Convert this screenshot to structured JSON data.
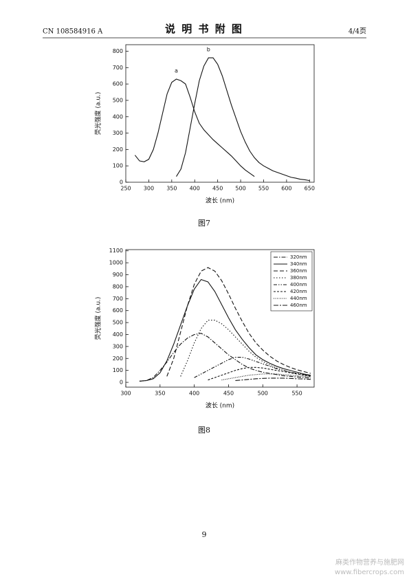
{
  "header": {
    "left": "CN 108584916 A",
    "title": "说 明 书 附 图",
    "right": "4/4页"
  },
  "chart_data": [
    {
      "type": "line",
      "xlabel": "波长 (nm)",
      "ylabel": "荧光强度 (a.u.)",
      "x": [
        270,
        280,
        290,
        300,
        310,
        320,
        330,
        340,
        350,
        360,
        370,
        380,
        390,
        400,
        410,
        420,
        430,
        440,
        450,
        460,
        470,
        480,
        490,
        500,
        510,
        520,
        530,
        540,
        550,
        560,
        570,
        580,
        590,
        600,
        610,
        620,
        630,
        640,
        650
      ],
      "series": [
        {
          "name": "a",
          "color": "#111111",
          "values": [
            165,
            130,
            125,
            140,
            200,
            300,
            420,
            540,
            610,
            630,
            620,
            600,
            520,
            430,
            360,
            320,
            290,
            260,
            235,
            210,
            185,
            160,
            130,
            100,
            75,
            55,
            35,
            null,
            null,
            null,
            null,
            null,
            null,
            null,
            null,
            null,
            null,
            null,
            null
          ]
        },
        {
          "name": "b",
          "color": "#111111",
          "values": [
            null,
            null,
            null,
            null,
            null,
            null,
            null,
            null,
            null,
            35,
            80,
            180,
            330,
            480,
            620,
            710,
            760,
            760,
            720,
            650,
            560,
            470,
            390,
            310,
            245,
            190,
            150,
            120,
            100,
            85,
            70,
            60,
            50,
            40,
            30,
            25,
            18,
            15,
            10
          ]
        }
      ],
      "xlim": [
        250,
        660
      ],
      "ylim": [
        0,
        840
      ],
      "xticks": [
        250,
        300,
        350,
        400,
        450,
        500,
        550,
        600,
        650
      ],
      "yticks": [
        0,
        100,
        200,
        300,
        400,
        500,
        600,
        700,
        800
      ]
    },
    {
      "type": "line",
      "xlabel": "波长 (nm)",
      "ylabel": "荧光强度 (a.u.)",
      "legend": "upper right",
      "x": [
        320,
        330,
        340,
        350,
        360,
        370,
        380,
        390,
        400,
        410,
        420,
        430,
        440,
        450,
        460,
        470,
        480,
        490,
        500,
        510,
        520,
        530,
        540,
        550,
        560,
        570
      ],
      "series": [
        {
          "name": "320nm",
          "color": "#111111",
          "dash": "6 2 1.5 2",
          "values": [
            10,
            15,
            40,
            100,
            170,
            250,
            320,
            370,
            400,
            410,
            380,
            330,
            280,
            230,
            190,
            150,
            120,
            100,
            85,
            75,
            65,
            55,
            50,
            45,
            40,
            35
          ]
        },
        {
          "name": "340nm",
          "color": "#111111",
          "dash": "none",
          "values": [
            10,
            15,
            30,
            80,
            180,
            320,
            480,
            640,
            780,
            860,
            840,
            760,
            650,
            540,
            440,
            360,
            290,
            230,
            190,
            160,
            135,
            115,
            100,
            85,
            70,
            60
          ]
        },
        {
          "name": "360nm",
          "color": "#111111",
          "dash": "6 3",
          "values": [
            null,
            null,
            null,
            null,
            50,
            200,
            420,
            640,
            820,
            930,
            960,
            930,
            850,
            740,
            620,
            510,
            410,
            330,
            270,
            220,
            180,
            150,
            125,
            105,
            90,
            75
          ]
        },
        {
          "name": "380nm",
          "color": "#111111",
          "dash": "1.5 2.5",
          "values": [
            null,
            null,
            null,
            null,
            null,
            null,
            50,
            180,
            330,
            450,
            520,
            520,
            490,
            440,
            380,
            320,
            260,
            210,
            175,
            145,
            120,
            100,
            85,
            75,
            65,
            55
          ]
        },
        {
          "name": "400nm",
          "color": "#111111",
          "dash": "5 2 1.5 2 1.5 2",
          "values": [
            null,
            null,
            null,
            null,
            null,
            null,
            null,
            null,
            40,
            70,
            100,
            130,
            160,
            190,
            210,
            210,
            195,
            175,
            155,
            135,
            115,
            100,
            85,
            75,
            65,
            55
          ]
        },
        {
          "name": "420nm",
          "color": "#111111",
          "dash": "3 2",
          "values": [
            null,
            null,
            null,
            null,
            null,
            null,
            null,
            null,
            null,
            null,
            20,
            40,
            60,
            80,
            100,
            115,
            125,
            125,
            120,
            110,
            100,
            90,
            80,
            70,
            60,
            50
          ]
        },
        {
          "name": "440nm",
          "color": "#111111",
          "dash": "1 1.5",
          "values": [
            null,
            null,
            null,
            null,
            null,
            null,
            null,
            null,
            null,
            null,
            null,
            null,
            20,
            30,
            40,
            50,
            60,
            65,
            70,
            70,
            70,
            65,
            60,
            55,
            50,
            45
          ]
        },
        {
          "name": "460nm",
          "color": "#111111",
          "dash": "7 2 2 2",
          "values": [
            null,
            null,
            null,
            null,
            null,
            null,
            null,
            null,
            null,
            null,
            null,
            null,
            null,
            null,
            15,
            20,
            25,
            30,
            33,
            35,
            35,
            35,
            33,
            30,
            28,
            25
          ]
        }
      ],
      "xlim": [
        300,
        575
      ],
      "ylim": [
        -40,
        1110
      ],
      "xticks": [
        300,
        350,
        400,
        450,
        500,
        550
      ],
      "yticks": [
        0,
        100,
        200,
        300,
        400,
        500,
        600,
        700,
        800,
        900,
        1000,
        1100
      ]
    }
  ],
  "captions": [
    "图7",
    "图8"
  ],
  "page_number": "9",
  "watermark": [
    "麻类作物营养与施肥网",
    "www.fibercrops.com"
  ]
}
